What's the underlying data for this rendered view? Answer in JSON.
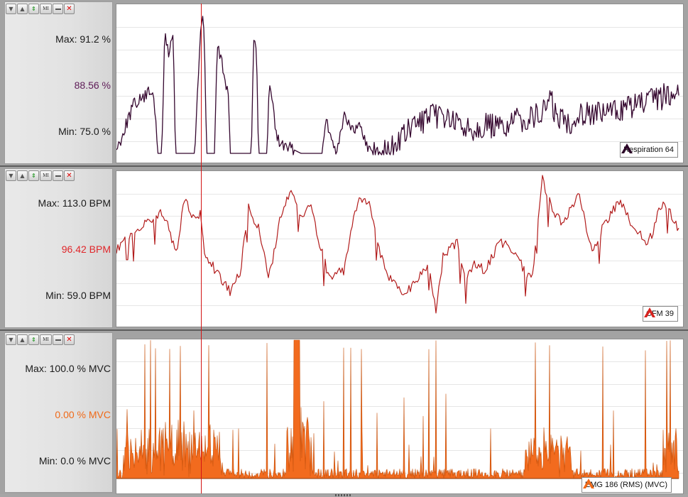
{
  "toolbar_icons": [
    "triangle-down-icon",
    "triangle-up-icon",
    "updown-arrow-icon",
    "mi-icon",
    "minimize-icon",
    "close-icon"
  ],
  "toolbar_mi_text": "MI",
  "panels": [
    {
      "id": "respiration",
      "max_label": "Max: 91.2 %",
      "current_value": "88.56 %",
      "min_label": "Min: 75.0 %",
      "legend": "Respiration 64",
      "value_color": "#5e1b57",
      "line_color": "#35072f",
      "icon_color": "#2c0528"
    },
    {
      "id": "cfm",
      "max_label": "Max: 113.0 BPM",
      "current_value": "96.42 BPM",
      "min_label": "Min: 59.0 BPM",
      "legend": "CFM 39",
      "value_color": "#e0262a",
      "line_color": "#b21c1c",
      "icon_color": "#d8231f"
    },
    {
      "id": "emg",
      "max_label": "Max: 100.0 % MVC",
      "current_value": "0.00 % MVC",
      "min_label": "Min: 0.0 % MVC",
      "legend": "EMG 186 (RMS) (MVC)",
      "value_color": "#f06a19",
      "line_color": "#c6500a",
      "fill_color": "#f26b1e",
      "icon_color": "#f06a19"
    }
  ],
  "cursor_color": "#d41414"
}
